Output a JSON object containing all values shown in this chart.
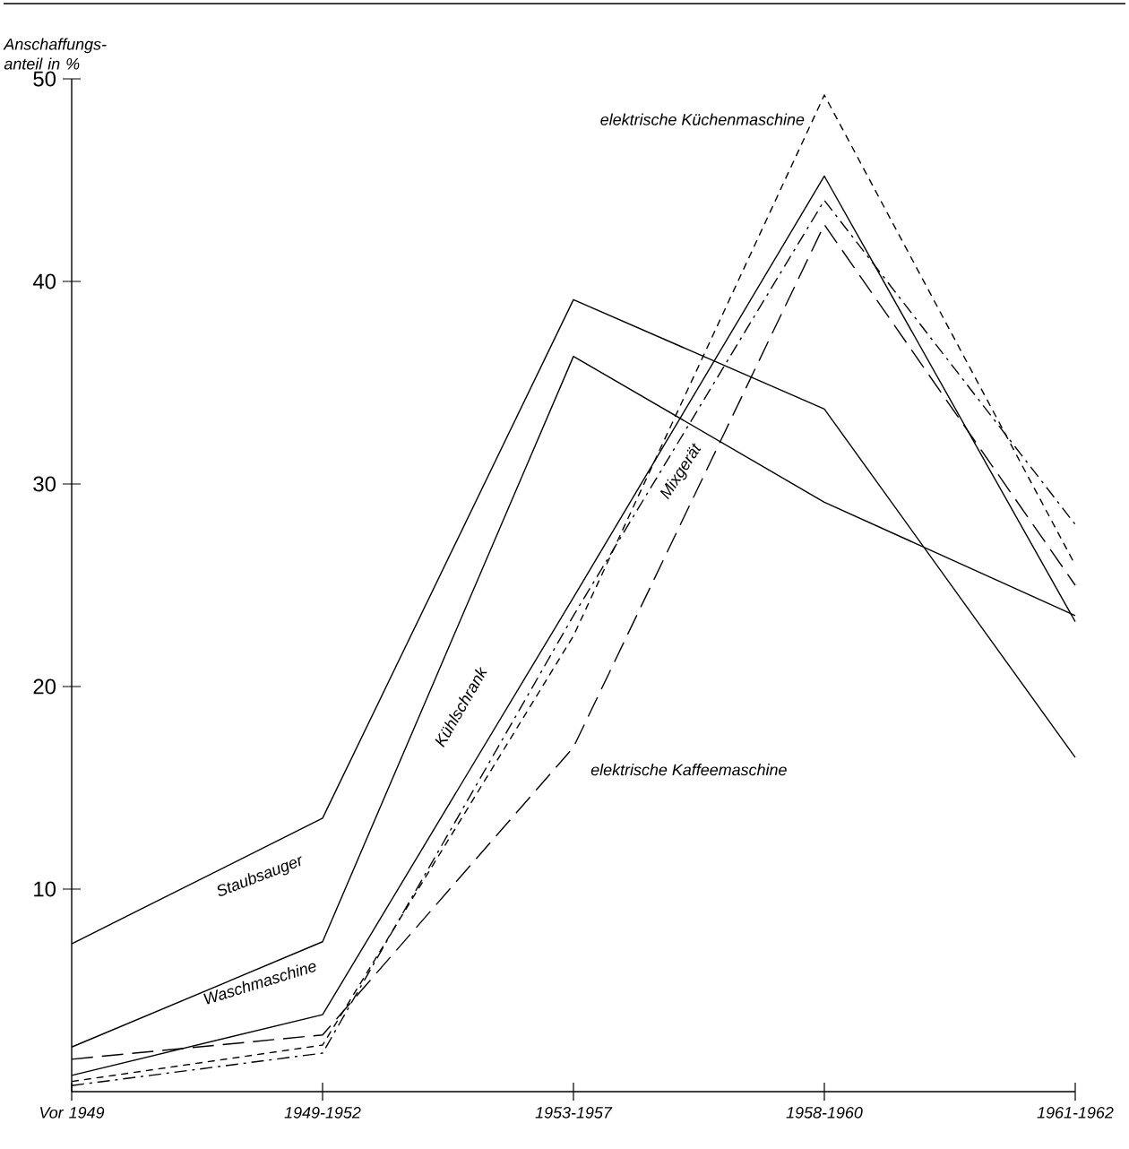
{
  "chart_data": {
    "type": "line",
    "ylabel": "Anschaffungs-anteil in %",
    "categories": [
      "Vor 1949",
      "1949-1952",
      "1953-1957",
      "1958-1960",
      "1961-1962"
    ],
    "ylim": [
      0,
      50
    ],
    "yticks": [
      10,
      20,
      30,
      40,
      50
    ],
    "marker": "none",
    "grid": false,
    "series": [
      {
        "name": "Staubsauger",
        "color": "#000000",
        "line_style": "solid",
        "values": [
          7.3,
          13.5,
          39.1,
          33.7,
          16.5
        ]
      },
      {
        "name": "Waschmaschine",
        "color": "#000000",
        "line_style": "solid",
        "values": [
          2.2,
          7.4,
          36.3,
          29.1,
          23.5
        ]
      },
      {
        "name": "Kühlschrank",
        "color": "#000000",
        "line_style": "solid",
        "values": [
          0.8,
          3.8,
          24.4,
          45.2,
          23.2
        ]
      },
      {
        "name": "Mixgerät",
        "color": "#000000",
        "line_style": "dashdot",
        "values": [
          0.3,
          1.9,
          23.5,
          44,
          28
        ]
      },
      {
        "name": "elektrische Kaffeemaschine",
        "color": "#000000",
        "line_style": "longdash",
        "values": [
          1.6,
          2.8,
          17,
          42.8,
          25
        ]
      },
      {
        "name": "elektrische Küchenmaschine",
        "color": "#000000",
        "line_style": "dashed",
        "values": [
          0.5,
          2.3,
          22.5,
          49.2,
          26
        ]
      }
    ]
  }
}
